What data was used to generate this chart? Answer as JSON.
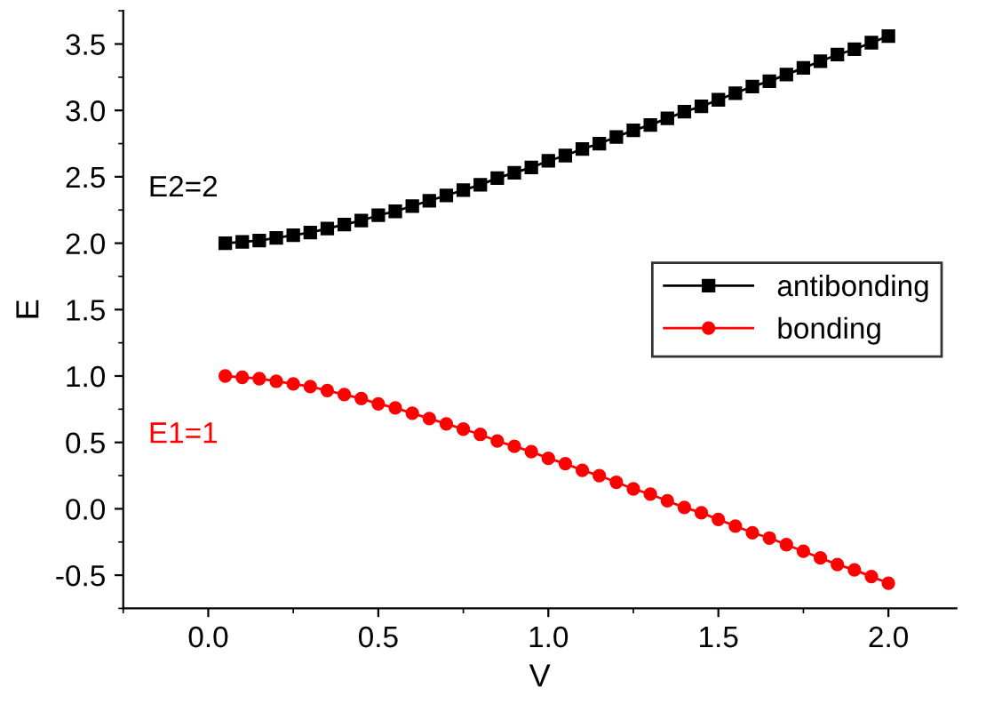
{
  "chart_data": {
    "type": "line",
    "xlabel": "V",
    "ylabel": "E",
    "x": [
      0.05,
      0.1,
      0.15,
      0.2,
      0.25,
      0.3,
      0.35,
      0.4,
      0.45,
      0.5,
      0.55,
      0.6,
      0.65,
      0.7,
      0.75,
      0.8,
      0.85,
      0.9,
      0.95,
      1.0,
      1.05,
      1.1,
      1.15,
      1.2,
      1.25,
      1.3,
      1.35,
      1.4,
      1.45,
      1.5,
      1.55,
      1.6,
      1.65,
      1.7,
      1.75,
      1.8,
      1.85,
      1.9,
      1.95,
      2.0
    ],
    "series": [
      {
        "name": "antibonding",
        "color": "#000000",
        "marker": "square",
        "values": [
          2.0,
          2.01,
          2.02,
          2.04,
          2.06,
          2.08,
          2.11,
          2.14,
          2.17,
          2.21,
          2.24,
          2.28,
          2.32,
          2.36,
          2.4,
          2.44,
          2.49,
          2.53,
          2.57,
          2.62,
          2.66,
          2.71,
          2.75,
          2.8,
          2.85,
          2.89,
          2.94,
          2.99,
          3.03,
          3.08,
          3.13,
          3.18,
          3.22,
          3.27,
          3.32,
          3.37,
          3.42,
          3.46,
          3.51,
          3.56
        ]
      },
      {
        "name": "bonding",
        "color": "#ff0000",
        "marker": "circle",
        "values": [
          1.0,
          0.99,
          0.98,
          0.96,
          0.94,
          0.92,
          0.89,
          0.86,
          0.83,
          0.79,
          0.76,
          0.72,
          0.68,
          0.64,
          0.6,
          0.56,
          0.51,
          0.47,
          0.43,
          0.38,
          0.34,
          0.29,
          0.25,
          0.2,
          0.15,
          0.11,
          0.06,
          0.01,
          -0.03,
          -0.08,
          -0.13,
          -0.18,
          -0.22,
          -0.27,
          -0.32,
          -0.37,
          -0.42,
          -0.46,
          -0.51,
          -0.56
        ]
      }
    ],
    "annotations": [
      "E2=2",
      "E1=1"
    ],
    "xlim": [
      -0.25,
      2.2
    ],
    "xticks": [
      {
        "value": 0,
        "label": "0.0"
      },
      0.5,
      {
        "value": 1,
        "label": "1.0"
      },
      1.5,
      {
        "value": 2,
        "label": "2.0"
      }
    ],
    "ylim": [
      -0.75,
      3.75
    ],
    "yticks": [
      {
        "value": -0.5,
        "label": "-0.5"
      },
      {
        "value": 0,
        "label": "0.0"
      },
      0.5,
      {
        "value": 1,
        "label": "1.0"
      },
      1.5,
      {
        "value": 2,
        "label": "2.0"
      },
      2.5,
      {
        "value": 3,
        "label": "3.0"
      },
      3.5
    ],
    "grid": false,
    "legend": "center right",
    "line_style": "solid"
  }
}
